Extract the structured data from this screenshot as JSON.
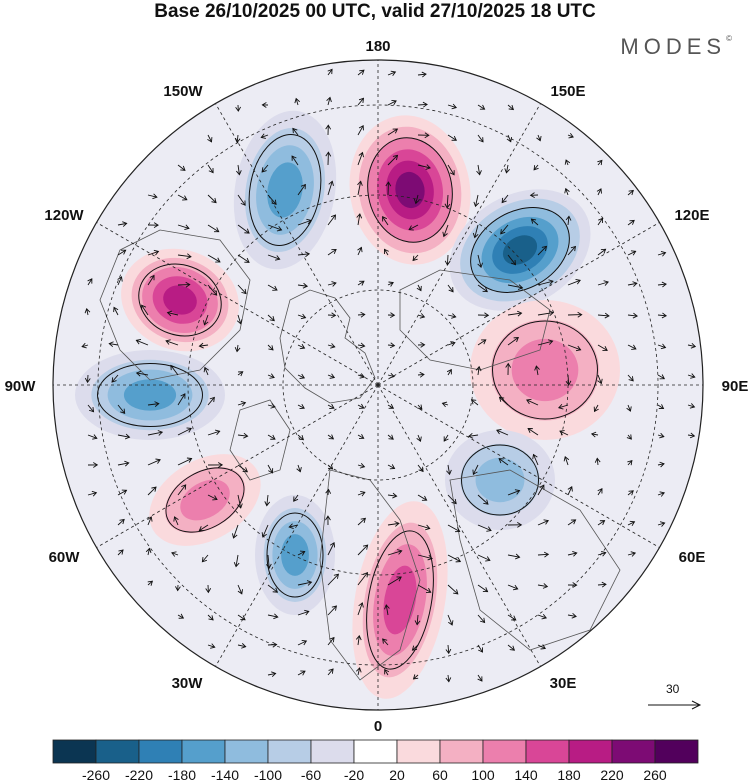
{
  "title": "Base 26/10/2025 00 UTC, valid 27/10/2025 18 UTC",
  "brand": "MODES",
  "brand_mark": "©",
  "longitude_labels": [
    "180",
    "150E",
    "120E",
    "90E",
    "60E",
    "30E",
    "0",
    "30W",
    "60W",
    "90W",
    "120W",
    "150W"
  ],
  "vector_scale_label": "30",
  "colorbar": {
    "ticks": [
      "-260",
      "-220",
      "-180",
      "-140",
      "-100",
      "-60",
      "-20",
      "20",
      "60",
      "100",
      "140",
      "180",
      "220",
      "260"
    ],
    "colors": [
      "#0b3552",
      "#19608a",
      "#2f80b5",
      "#559fcc",
      "#8fbcde",
      "#b7cde6",
      "#dcdcec",
      "#ffffff",
      "#fadadd",
      "#f4b0c3",
      "#ec7fad",
      "#d94697",
      "#b81c84",
      "#7d0b74",
      "#52005c"
    ]
  },
  "anomalies": [
    {
      "name": "anomaly-positive-north",
      "value": 230
    },
    {
      "name": "anomaly-negative-northeast",
      "value": -220
    },
    {
      "name": "anomaly-negative-northwest",
      "value": -160
    },
    {
      "name": "anomaly-positive-west",
      "value": 200
    },
    {
      "name": "anomaly-negative-west",
      "value": -150
    },
    {
      "name": "anomaly-positive-east",
      "value": 110
    },
    {
      "name": "anomaly-negative-southeast",
      "value": -130
    },
    {
      "name": "anomaly-positive-south",
      "value": 140
    },
    {
      "name": "anomaly-negative-southwest",
      "value": -140
    },
    {
      "name": "anomaly-positive-southwest",
      "value": 100
    }
  ]
}
